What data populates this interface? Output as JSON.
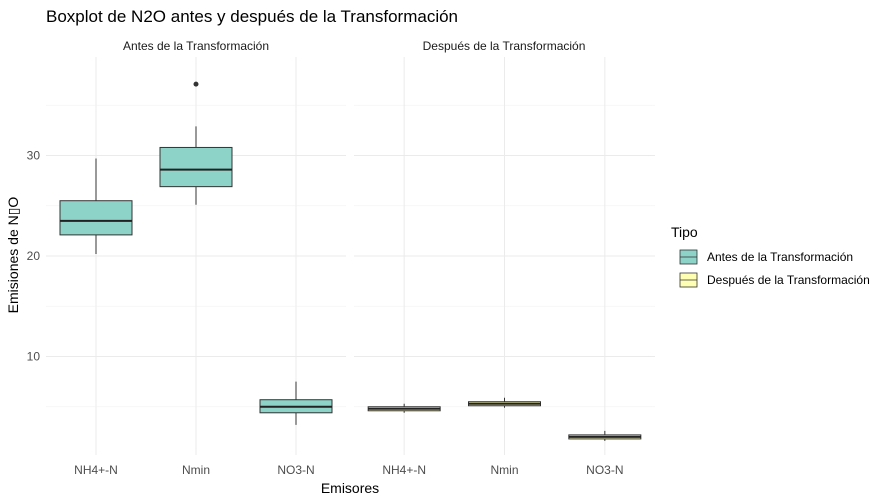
{
  "chart_data": {
    "type": "boxplot",
    "title": "Boxplot de N2O antes y después de la Transformación",
    "xlabel": "Emisores",
    "ylabel": "Emisiones de N▯O",
    "y_ticks": [
      10,
      20,
      30
    ],
    "ylim": [
      0.2,
      39.8
    ],
    "grid": true,
    "legend": {
      "title": "Tipo",
      "position": "right",
      "entries": [
        {
          "label": "Antes de la Transformación",
          "color": "#8dd3c7"
        },
        {
          "label": "Después de la Transformación",
          "color": "#ffffb3"
        }
      ]
    },
    "categories": [
      "NH4+-N",
      "Nmin",
      "NO3-N"
    ],
    "panels": [
      {
        "strip": "Antes de la Transformación",
        "series": "Antes de la Transformación",
        "boxes": [
          {
            "category": "NH4+-N",
            "whisker_low": 20.2,
            "q1": 22.1,
            "median": 23.5,
            "q3": 25.5,
            "whisker_high": 29.7,
            "outliers": []
          },
          {
            "category": "Nmin",
            "whisker_low": 25.1,
            "q1": 26.9,
            "median": 28.6,
            "q3": 30.8,
            "whisker_high": 32.9,
            "outliers": [
              37.1
            ]
          },
          {
            "category": "NO3-N",
            "whisker_low": 3.2,
            "q1": 4.4,
            "median": 5.0,
            "q3": 5.7,
            "whisker_high": 7.5,
            "outliers": []
          }
        ]
      },
      {
        "strip": "Después de la Transformación",
        "series": "Después de la Transformación",
        "boxes": [
          {
            "category": "NH4+-N",
            "whisker_low": 4.4,
            "q1": 4.6,
            "median": 4.8,
            "q3": 5.0,
            "whisker_high": 5.3,
            "outliers": []
          },
          {
            "category": "Nmin",
            "whisker_low": 4.9,
            "q1": 5.1,
            "median": 5.3,
            "q3": 5.5,
            "whisker_high": 5.9,
            "outliers": []
          },
          {
            "category": "NO3-N",
            "whisker_low": 1.6,
            "q1": 1.8,
            "median": 2.0,
            "q3": 2.2,
            "whisker_high": 2.6,
            "outliers": []
          }
        ]
      }
    ]
  }
}
